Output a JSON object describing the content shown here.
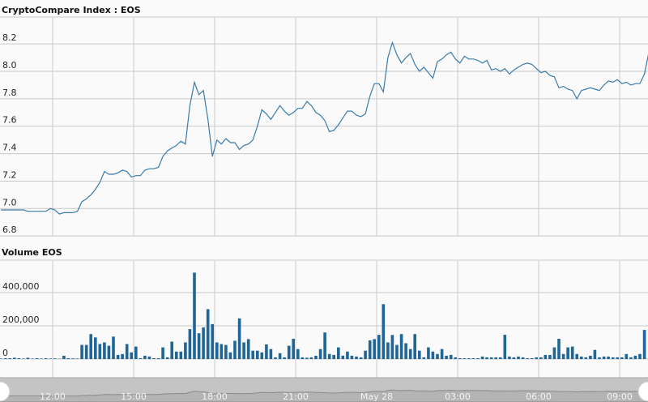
{
  "chart_data": [
    {
      "type": "line",
      "title": "CryptoCompare Index : EOS",
      "xlabel": "",
      "ylabel": "",
      "ylim": [
        6.8,
        8.3
      ],
      "y_ticks": [
        "6.8",
        "7.0",
        "7.2",
        "7.4",
        "7.6",
        "7.8",
        "8.0",
        "8.2"
      ],
      "x_ticks": [
        "12:00",
        "15:00",
        "18:00",
        "21:00",
        "May 28",
        "03:00",
        "06:00",
        "09:00"
      ],
      "grid": true,
      "line_color": "#3a7bab",
      "series": [
        {
          "start": "May 27 10:05",
          "interval_minutes": 10,
          "values": [
            6.99,
            6.99,
            6.99,
            6.99,
            6.99,
            6.99,
            6.98,
            6.98,
            6.98,
            6.98,
            6.98,
            7.0,
            6.99,
            6.96,
            6.97,
            6.97,
            6.97,
            6.98,
            7.05,
            7.07,
            7.1,
            7.14,
            7.19,
            7.27,
            7.25,
            7.25,
            7.26,
            7.28,
            7.27,
            7.23,
            7.24,
            7.24,
            7.28,
            7.29,
            7.29,
            7.3,
            7.38,
            7.42,
            7.44,
            7.46,
            7.49,
            7.47,
            7.75,
            7.92,
            7.83,
            7.86,
            7.65,
            7.38,
            7.5,
            7.47,
            7.51,
            7.48,
            7.48,
            7.43,
            7.46,
            7.47,
            7.5,
            7.6,
            7.72,
            7.69,
            7.65,
            7.7,
            7.75,
            7.71,
            7.68,
            7.7,
            7.73,
            7.73,
            7.78,
            7.75,
            7.7,
            7.68,
            7.64,
            7.56,
            7.57,
            7.61,
            7.66,
            7.71,
            7.71,
            7.68,
            7.67,
            7.69,
            7.82,
            7.91,
            7.91,
            7.85,
            8.1,
            8.21,
            8.12,
            8.06,
            8.1,
            8.13,
            8.05,
            8.0,
            8.03,
            7.99,
            7.95,
            8.07,
            8.09,
            8.12,
            8.14,
            8.09,
            8.06,
            8.11,
            8.09,
            8.09,
            8.08,
            8.06,
            8.08,
            8.01,
            8.02,
            8.0,
            8.02,
            7.98,
            8.01,
            8.03,
            8.05,
            8.06,
            8.05,
            8.02,
            7.99,
            8.0,
            7.97,
            7.96,
            7.88,
            7.89,
            7.87,
            7.86,
            7.8,
            7.86,
            7.87,
            7.88,
            7.87,
            7.86,
            7.9,
            7.93,
            7.92,
            7.94,
            7.91,
            7.92,
            7.9,
            7.91,
            7.91,
            7.98,
            8.14,
            8.18
          ]
        }
      ]
    },
    {
      "type": "bar",
      "title": "Volume EOS",
      "xlabel": "",
      "ylabel": "",
      "ylim": [
        0,
        600000
      ],
      "y_ticks": [
        "0",
        "200,000",
        "400,000"
      ],
      "grid": true,
      "bar_color": "#1f6696",
      "series": [
        {
          "start": "May 27 10:05",
          "interval_minutes": 10,
          "values": [
            3000,
            5000,
            5000,
            8000,
            5000,
            3000,
            8000,
            3000,
            5000,
            3000,
            5000,
            3000,
            4000,
            2000,
            20000,
            5000,
            4000,
            3000,
            85000,
            85000,
            150000,
            130000,
            90000,
            100000,
            80000,
            135000,
            25000,
            30000,
            90000,
            40000,
            75000,
            5000,
            20000,
            15000,
            5000,
            5000,
            70000,
            10000,
            105000,
            45000,
            45000,
            100000,
            180000,
            520000,
            155000,
            190000,
            300000,
            210000,
            100000,
            90000,
            85000,
            40000,
            110000,
            245000,
            100000,
            120000,
            50000,
            50000,
            40000,
            88000,
            60000,
            10000,
            35000,
            10000,
            80000,
            122000,
            60000,
            10000,
            8000,
            10000,
            20000,
            60000,
            160000,
            30000,
            25000,
            70000,
            20000,
            45000,
            20000,
            15000,
            10000,
            50000,
            112000,
            120000,
            146000,
            330000,
            100000,
            145000,
            85000,
            150000,
            95000,
            60000,
            150000,
            50000,
            10000,
            70000,
            45000,
            30000,
            60000,
            20000,
            25000,
            10000,
            5000,
            5000,
            5000,
            5000,
            5000,
            15000,
            10000,
            10000,
            10000,
            10000,
            146000,
            15000,
            10000,
            15000,
            10000,
            5000,
            5000,
            10000,
            10000,
            25000,
            25000,
            70000,
            122000,
            30000,
            70000,
            75000,
            30000,
            15000,
            10000,
            20000,
            55000,
            10000,
            15000,
            15000,
            10000,
            10000,
            10000,
            30000,
            10000,
            20000,
            30000,
            175000
          ]
        }
      ]
    }
  ],
  "navigator": {
    "labels": [
      "12:00",
      "15:00",
      "18:00",
      "21:00",
      "May 28",
      "03:00",
      "06:00",
      "09:00"
    ],
    "background": "#c4c4c4"
  }
}
